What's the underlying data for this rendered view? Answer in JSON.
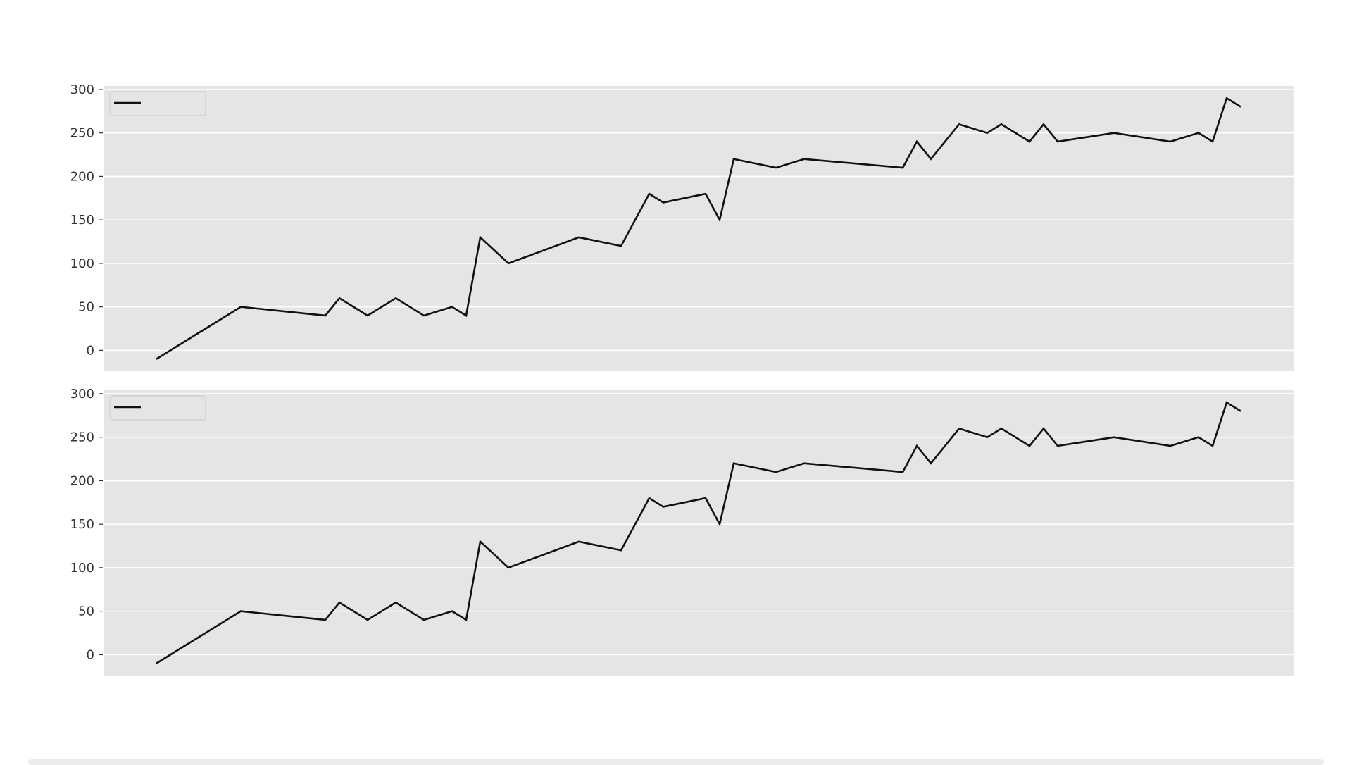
{
  "chart_data": [
    {
      "type": "line",
      "title": "",
      "xlabel": "",
      "ylabel": "",
      "ylim": [
        -24,
        304
      ],
      "yticks": [
        0,
        50,
        100,
        150,
        200,
        250,
        300
      ],
      "grid": true,
      "legend": {
        "placement": "top-left",
        "entries": [
          ""
        ]
      },
      "x": [
        0,
        6,
        12,
        13,
        15,
        17,
        19,
        21,
        22,
        23,
        25,
        30,
        33,
        35,
        36,
        39,
        40,
        41,
        44,
        46,
        53,
        54,
        55,
        57,
        59,
        60,
        62,
        63,
        64,
        68,
        72,
        74,
        75,
        76,
        77
      ],
      "series": [
        {
          "values": [
            -10,
            50,
            40,
            60,
            40,
            60,
            40,
            50,
            40,
            130,
            100,
            130,
            120,
            180,
            170,
            180,
            150,
            220,
            210,
            220,
            210,
            240,
            220,
            260,
            250,
            260,
            240,
            260,
            240,
            250,
            240,
            250,
            240,
            290,
            280
          ]
        }
      ],
      "colors": {
        "line": "#111111",
        "plot_bg": "#e5e5e5",
        "grid": "#ffffff"
      }
    },
    {
      "type": "line",
      "title": "",
      "xlabel": "",
      "ylabel": "",
      "ylim": [
        -24,
        304
      ],
      "yticks": [
        0,
        50,
        100,
        150,
        200,
        250,
        300
      ],
      "grid": true,
      "legend": {
        "placement": "top-left",
        "entries": [
          ""
        ]
      },
      "x": [
        0,
        6,
        12,
        13,
        15,
        17,
        19,
        21,
        22,
        23,
        25,
        30,
        33,
        35,
        36,
        39,
        40,
        41,
        44,
        46,
        53,
        54,
        55,
        57,
        59,
        60,
        62,
        63,
        64,
        68,
        72,
        74,
        75,
        76,
        77
      ],
      "series": [
        {
          "values": [
            -10,
            50,
            40,
            60,
            40,
            60,
            40,
            50,
            40,
            130,
            100,
            130,
            120,
            180,
            170,
            180,
            150,
            220,
            210,
            220,
            210,
            240,
            220,
            260,
            250,
            260,
            240,
            260,
            240,
            250,
            240,
            250,
            240,
            290,
            280
          ]
        }
      ],
      "colors": {
        "line": "#111111",
        "plot_bg": "#e5e5e5",
        "grid": "#ffffff"
      }
    }
  ]
}
